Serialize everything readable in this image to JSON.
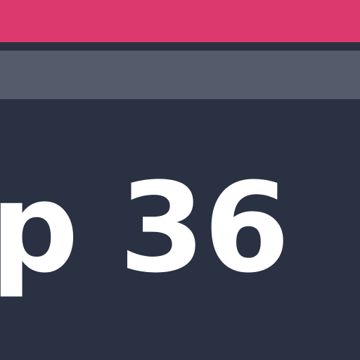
{
  "colors": {
    "accent": "#dc3a6e",
    "secondary_bar": "#545c6b",
    "background": "#2a3142",
    "heading_text": "#ffffff"
  },
  "main": {
    "heading": "p 36"
  }
}
